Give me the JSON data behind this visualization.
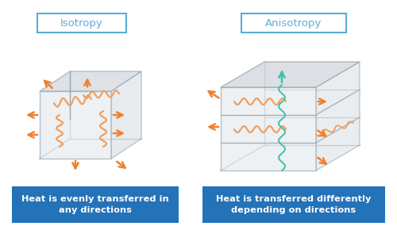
{
  "bg_color": "#ffffff",
  "title_left": "Isotropy",
  "title_right": "Anisotropy",
  "caption_left": "Heat is evenly transferred in\nany directions",
  "caption_right": "Heat is transferred differently\ndepending on directions",
  "caption_bg": "#2472b8",
  "caption_color": "#ffffff",
  "title_border_color": "#5aadd4",
  "title_text_color": "#5aadd4",
  "box_face_front": "#e8ecef",
  "box_face_top": "#d4d9de",
  "box_face_right": "#dde1e5",
  "box_edge_color": "#9aaab5",
  "arrow_color": "#f08030",
  "green_color": "#3dbfb0",
  "wavy_orange": "#f0a060",
  "wavy_green": "#3dbfb0"
}
